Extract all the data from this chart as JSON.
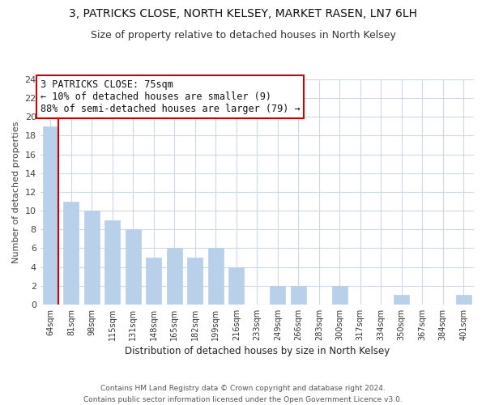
{
  "title": "3, PATRICKS CLOSE, NORTH KELSEY, MARKET RASEN, LN7 6LH",
  "subtitle": "Size of property relative to detached houses in North Kelsey",
  "xlabel": "Distribution of detached houses by size in North Kelsey",
  "ylabel": "Number of detached properties",
  "footer_line1": "Contains HM Land Registry data © Crown copyright and database right 2024.",
  "footer_line2": "Contains public sector information licensed under the Open Government Licence v3.0.",
  "annotation_title": "3 PATRICKS CLOSE: 75sqm",
  "annotation_line1": "← 10% of detached houses are smaller (9)",
  "annotation_line2": "88% of semi-detached houses are larger (79) →",
  "bar_labels": [
    "64sqm",
    "81sqm",
    "98sqm",
    "115sqm",
    "131sqm",
    "148sqm",
    "165sqm",
    "182sqm",
    "199sqm",
    "216sqm",
    "233sqm",
    "249sqm",
    "266sqm",
    "283sqm",
    "300sqm",
    "317sqm",
    "334sqm",
    "350sqm",
    "367sqm",
    "384sqm",
    "401sqm"
  ],
  "bar_values": [
    19,
    11,
    10,
    9,
    8,
    5,
    6,
    5,
    6,
    4,
    0,
    2,
    2,
    0,
    2,
    0,
    0,
    1,
    0,
    0,
    1
  ],
  "bar_color": "#b8d0ea",
  "highlight_edge_color": "#cc0000",
  "annotation_box_edge_color": "#cc0000",
  "ylim": [
    0,
    24
  ],
  "ytick_interval": 2,
  "background_color": "#ffffff",
  "grid_color": "#ccd9e8",
  "title_fontsize": 10,
  "subtitle_fontsize": 9
}
